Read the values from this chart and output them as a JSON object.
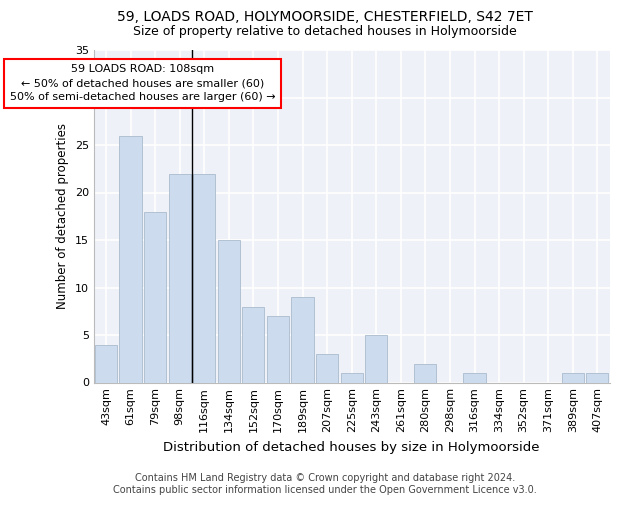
{
  "title1": "59, LOADS ROAD, HOLYMOORSIDE, CHESTERFIELD, S42 7ET",
  "title2": "Size of property relative to detached houses in Holymoorside",
  "xlabel": "Distribution of detached houses by size in Holymoorside",
  "ylabel": "Number of detached properties",
  "footer1": "Contains HM Land Registry data © Crown copyright and database right 2024.",
  "footer2": "Contains public sector information licensed under the Open Government Licence v3.0.",
  "annotation_line1": "59 LOADS ROAD: 108sqm",
  "annotation_line2": "← 50% of detached houses are smaller (60)",
  "annotation_line3": "50% of semi-detached houses are larger (60) →",
  "categories": [
    "43sqm",
    "61sqm",
    "79sqm",
    "98sqm",
    "116sqm",
    "134sqm",
    "152sqm",
    "170sqm",
    "189sqm",
    "207sqm",
    "225sqm",
    "243sqm",
    "261sqm",
    "280sqm",
    "298sqm",
    "316sqm",
    "334sqm",
    "352sqm",
    "371sqm",
    "389sqm",
    "407sqm"
  ],
  "values": [
    4,
    26,
    18,
    22,
    22,
    15,
    8,
    7,
    9,
    3,
    1,
    5,
    0,
    2,
    0,
    1,
    0,
    0,
    0,
    1,
    1
  ],
  "bar_color": "#ccdcee",
  "bar_edge_color": "#aabcce",
  "median_bin_index": 3,
  "ylim": [
    0,
    35
  ],
  "yticks": [
    0,
    5,
    10,
    15,
    20,
    25,
    30,
    35
  ],
  "background_color": "#eef2f8",
  "grid_color": "#ffffff",
  "title1_fontsize": 10,
  "title2_fontsize": 9,
  "xlabel_fontsize": 9.5,
  "ylabel_fontsize": 8.5,
  "tick_fontsize": 8,
  "annotation_fontsize": 8,
  "footer_fontsize": 7
}
